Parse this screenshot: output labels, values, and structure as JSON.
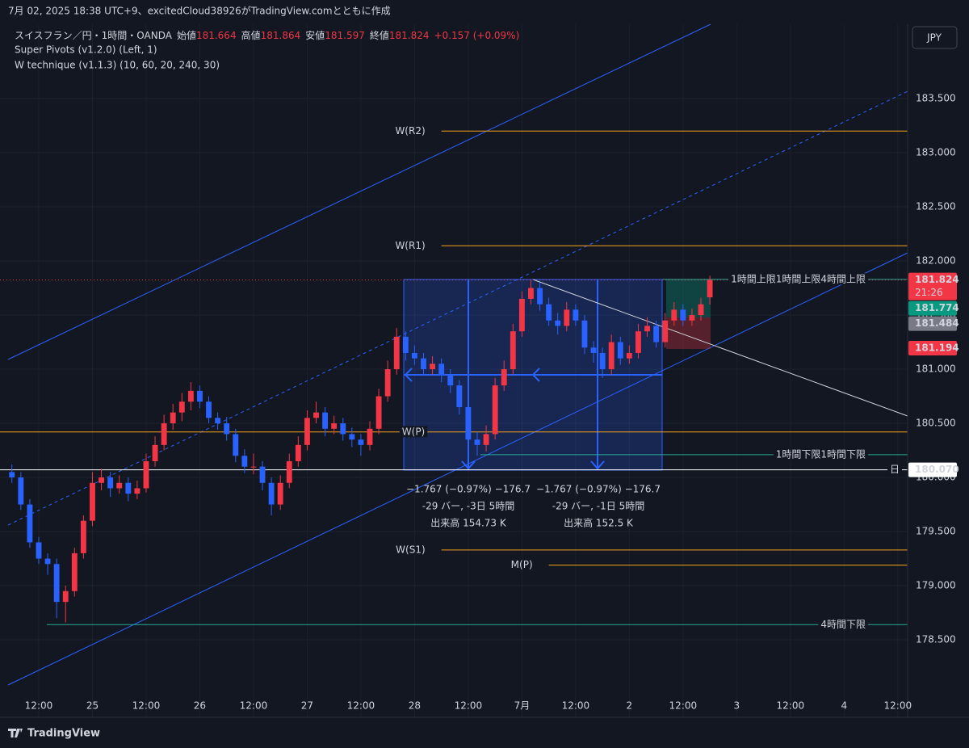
{
  "header": {
    "caption": "7月 02, 2025 18:38 UTC+9、excitedCloud38926がTradingView.comとともに作成",
    "symbol": "スイスフラン／円・1時間・OANDA",
    "ohlc": [
      {
        "label": "始値",
        "value": "181.664"
      },
      {
        "label": "高値",
        "value": "181.864"
      },
      {
        "label": "安値",
        "value": "181.597"
      },
      {
        "label": "終値",
        "value": "181.824"
      }
    ],
    "change": "+0.157 (+0.09%)",
    "indicators": [
      "Super Pivots (v1.2.0) (Left, 1)",
      "W technique (v1.1.3) (10, 60, 20, 240, 30)"
    ],
    "currency": "JPY"
  },
  "footer": {
    "brand": "TradingView"
  },
  "chart_data": {
    "type": "candlestick",
    "up_color": "#f23645",
    "down_color": "#2962ff",
    "grid": true,
    "xlim": [
      3.34,
      206.2
    ],
    "ylim": [
      177.784,
      184.187
    ],
    "xticks": [
      {
        "value": 12,
        "label": "12:00"
      },
      {
        "value": 24,
        "label": "25"
      },
      {
        "value": 36,
        "label": "12:00"
      },
      {
        "value": 48,
        "label": "26"
      },
      {
        "value": 60,
        "label": "12:00"
      },
      {
        "value": 72,
        "label": "27"
      },
      {
        "value": 84,
        "label": "12:00"
      },
      {
        "value": 96,
        "label": "28"
      },
      {
        "value": 108,
        "label": "12:00"
      },
      {
        "value": 120,
        "label": "7月"
      },
      {
        "value": 132,
        "label": "12:00"
      },
      {
        "value": 144,
        "label": "2"
      },
      {
        "value": 156,
        "label": "12:00"
      },
      {
        "value": 168,
        "label": "3"
      },
      {
        "value": 180,
        "label": "12:00"
      },
      {
        "value": 192,
        "label": "4"
      },
      {
        "value": 204,
        "label": "12:00"
      }
    ],
    "yticks": [
      {
        "value": 183.5,
        "label": "183.500"
      },
      {
        "value": 183,
        "label": "183.000"
      },
      {
        "value": 182.5,
        "label": "182.500"
      },
      {
        "value": 182,
        "label": "182.000"
      },
      {
        "value": 181.5,
        "label": "181.500"
      },
      {
        "value": 181,
        "label": "181.000"
      },
      {
        "value": 180.5,
        "label": "180.500"
      },
      {
        "value": 180,
        "label": "180.000"
      },
      {
        "value": 179.5,
        "label": "179.500"
      },
      {
        "value": 179,
        "label": "179.000"
      },
      {
        "value": 178.5,
        "label": "178.500"
      }
    ],
    "x": [
      6,
      8,
      10,
      12,
      14,
      16,
      18,
      20,
      22,
      24,
      26,
      28,
      30,
      32,
      34,
      36,
      38,
      40,
      42,
      44,
      46,
      48,
      50,
      52,
      54,
      56,
      58,
      60,
      62,
      64,
      66,
      68,
      70,
      72,
      74,
      76,
      78,
      80,
      82,
      84,
      86,
      88,
      90,
      92,
      94,
      96,
      98,
      100,
      102,
      104,
      106,
      108,
      110,
      112,
      114,
      116,
      118,
      120,
      122,
      124,
      126,
      128,
      130,
      132,
      134,
      136,
      138,
      140,
      142,
      144,
      146,
      148,
      150,
      152,
      154,
      156,
      158,
      160,
      162
    ],
    "ohlc": [
      [
        180.05,
        180.12,
        179.95,
        180.0
      ],
      [
        180.0,
        180.05,
        179.7,
        179.75
      ],
      [
        179.75,
        179.8,
        179.35,
        179.4
      ],
      [
        179.4,
        179.45,
        179.2,
        179.25
      ],
      [
        179.25,
        179.3,
        179.1,
        179.2
      ],
      [
        179.2,
        179.25,
        178.7,
        178.85
      ],
      [
        178.85,
        179.0,
        178.66,
        178.95
      ],
      [
        178.95,
        179.35,
        178.9,
        179.3
      ],
      [
        179.3,
        179.65,
        179.25,
        179.6
      ],
      [
        179.6,
        180.05,
        179.55,
        179.95
      ],
      [
        179.95,
        180.08,
        179.88,
        180.0
      ],
      [
        180.0,
        180.05,
        179.82,
        179.9
      ],
      [
        179.9,
        180.02,
        179.85,
        179.95
      ],
      [
        179.95,
        180.0,
        179.78,
        179.85
      ],
      [
        179.85,
        179.97,
        179.8,
        179.9
      ],
      [
        179.9,
        180.22,
        179.86,
        180.15
      ],
      [
        180.15,
        180.38,
        180.1,
        180.3
      ],
      [
        180.3,
        180.58,
        180.25,
        180.5
      ],
      [
        180.5,
        180.68,
        180.44,
        180.6
      ],
      [
        180.6,
        180.78,
        180.52,
        180.7
      ],
      [
        180.7,
        180.88,
        180.62,
        180.8
      ],
      [
        180.8,
        180.85,
        180.64,
        180.7
      ],
      [
        180.7,
        180.75,
        180.5,
        180.55
      ],
      [
        180.55,
        180.6,
        180.44,
        180.5
      ],
      [
        180.5,
        180.56,
        180.34,
        180.4
      ],
      [
        180.4,
        180.45,
        180.14,
        180.2
      ],
      [
        180.2,
        180.26,
        180.04,
        180.1
      ],
      [
        180.1,
        180.22,
        180.03,
        180.1
      ],
      [
        180.1,
        180.15,
        179.88,
        179.95
      ],
      [
        179.95,
        180.0,
        179.65,
        179.75
      ],
      [
        179.75,
        180.02,
        179.7,
        179.95
      ],
      [
        179.95,
        180.22,
        179.9,
        180.15
      ],
      [
        180.15,
        180.38,
        180.1,
        180.3
      ],
      [
        180.3,
        180.62,
        180.25,
        180.55
      ],
      [
        180.55,
        180.7,
        180.5,
        180.6
      ],
      [
        180.6,
        180.65,
        180.38,
        180.45
      ],
      [
        180.45,
        180.57,
        180.4,
        180.5
      ],
      [
        180.5,
        180.55,
        180.34,
        180.4
      ],
      [
        180.4,
        180.46,
        180.28,
        180.35
      ],
      [
        180.35,
        180.4,
        180.2,
        180.3
      ],
      [
        180.3,
        180.52,
        180.25,
        180.45
      ],
      [
        180.45,
        180.82,
        180.4,
        180.75
      ],
      [
        180.75,
        181.08,
        180.7,
        181.0
      ],
      [
        181.0,
        181.38,
        180.95,
        181.3
      ],
      [
        181.3,
        181.35,
        181.08,
        181.15
      ],
      [
        181.15,
        181.22,
        181.04,
        181.1
      ],
      [
        181.1,
        181.15,
        180.94,
        181.0
      ],
      [
        181.0,
        181.12,
        180.95,
        181.05
      ],
      [
        181.05,
        181.1,
        180.88,
        180.95
      ],
      [
        180.95,
        181.0,
        180.78,
        180.85
      ],
      [
        180.85,
        180.9,
        180.58,
        180.65
      ],
      [
        180.65,
        180.7,
        180.22,
        180.35
      ],
      [
        180.35,
        180.42,
        180.2,
        180.3
      ],
      [
        180.3,
        180.48,
        180.24,
        180.4
      ],
      [
        180.4,
        180.92,
        180.35,
        180.85
      ],
      [
        180.85,
        181.08,
        180.8,
        181.0
      ],
      [
        181.0,
        181.42,
        180.95,
        181.35
      ],
      [
        181.35,
        181.72,
        181.3,
        181.65
      ],
      [
        181.65,
        181.82,
        181.6,
        181.75
      ],
      [
        181.75,
        181.8,
        181.54,
        181.6
      ],
      [
        181.6,
        181.66,
        181.4,
        181.45
      ],
      [
        181.45,
        181.52,
        181.32,
        181.4
      ],
      [
        181.4,
        181.62,
        181.35,
        181.55
      ],
      [
        181.55,
        181.6,
        181.4,
        181.45
      ],
      [
        181.45,
        181.5,
        181.14,
        181.2
      ],
      [
        181.2,
        181.26,
        181.06,
        181.15
      ],
      [
        181.15,
        181.2,
        180.92,
        181.0
      ],
      [
        181.0,
        181.32,
        180.95,
        181.25
      ],
      [
        181.25,
        181.3,
        181.04,
        181.1
      ],
      [
        181.1,
        181.22,
        181.05,
        181.15
      ],
      [
        181.15,
        181.42,
        181.1,
        181.35
      ],
      [
        181.35,
        181.48,
        181.3,
        181.4
      ],
      [
        181.4,
        181.45,
        181.2,
        181.25
      ],
      [
        181.25,
        181.52,
        181.2,
        181.45
      ],
      [
        181.45,
        181.62,
        181.4,
        181.55
      ],
      [
        181.55,
        181.6,
        181.4,
        181.45
      ],
      [
        181.45,
        181.56,
        181.4,
        181.5
      ],
      [
        181.5,
        181.66,
        181.45,
        181.6
      ],
      [
        181.664,
        181.864,
        181.597,
        181.824
      ]
    ],
    "levels": [
      {
        "name": "W(R2)",
        "value": 183.2,
        "from": 102,
        "color": "#f7a21b"
      },
      {
        "name": "W(R1)",
        "value": 182.14,
        "from": 102,
        "color": "#f7a21b"
      },
      {
        "name": "W(P)",
        "value": 180.42,
        "color": "#f7a21b"
      },
      {
        "name": "W(S1)",
        "value": 179.33,
        "from": 102,
        "color": "#f7a21b"
      },
      {
        "name": "M(P)",
        "value": 179.19,
        "from": 126,
        "color": "#f7a21b"
      },
      {
        "name": "1時間上限1時間上限4時間上限",
        "value": 181.83,
        "from": 151.4,
        "color": "#22ab94"
      },
      {
        "name": "1時間下限1時間下限",
        "value": 180.21,
        "from": 110.7,
        "color": "#22ab94"
      },
      {
        "name": "4時間下限",
        "value": 178.64,
        "from": 13.8,
        "color": "#22ab94"
      },
      {
        "name": "日",
        "value": 180.07,
        "color": "#ffffff"
      }
    ],
    "price_labels": [
      {
        "value": 181.824,
        "label": "181.824",
        "sub": "21:26",
        "color": "#f23645"
      },
      {
        "value": 181.774,
        "label": "181.774",
        "color": "#089981"
      },
      {
        "value": 181.484,
        "label": "181.484",
        "color": "#787b86"
      },
      {
        "value": 181.194,
        "label": "181.194",
        "color": "#f23645"
      },
      {
        "value": 180.07,
        "label": "180.070",
        "color": "#ffffff"
      }
    ],
    "measurements": [
      [
        "−1.767 (−0.97%) −176.7",
        "-29 バー, -3日 5時間",
        "出来高 154.73 K"
      ],
      [
        "−1.767 (−0.97%) −176.7",
        "-29 バー, -1日 5時間",
        "出来高 152.5 K"
      ]
    ]
  }
}
